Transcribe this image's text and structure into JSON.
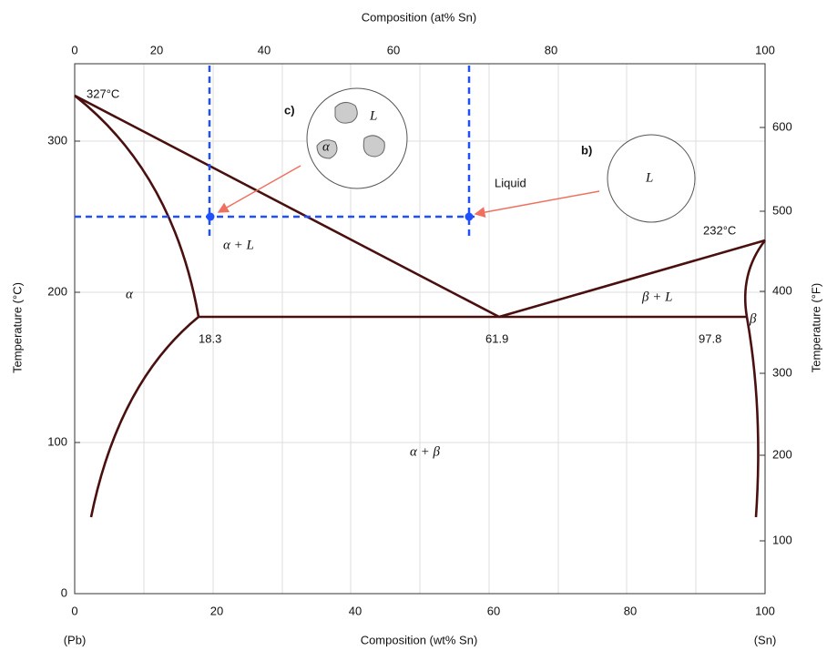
{
  "axes": {
    "top_title": "Composition (at% Sn)",
    "bottom_title": "Composition (wt% Sn)",
    "left_title": "Temperature (°C)",
    "right_title": "Temperature (°F)",
    "left_end": "(Pb)",
    "right_end": "(Sn)",
    "bottom_ticks": [
      "0",
      "20",
      "40",
      "60",
      "80",
      "100"
    ],
    "top_ticks": [
      "0",
      "20",
      "40",
      "60",
      "80",
      "100"
    ],
    "left_ticks": [
      "0",
      "100",
      "200",
      "300"
    ],
    "right_ticks": [
      "100",
      "200",
      "300",
      "400",
      "500",
      "600"
    ]
  },
  "annotations": {
    "pb_melt": "327°C",
    "sn_melt": "232°C",
    "c": "c)",
    "b": "b)",
    "liquid": "Liquid",
    "alpha_l": "α + L",
    "alpha": "α",
    "beta_l": "β + L",
    "beta": "β",
    "e1": "18.3",
    "e2": "61.9",
    "e3": "97.8",
    "alpha_beta": "α + β",
    "circle_c_l": "L",
    "circle_c_alpha": "α",
    "circle_b_l": "L"
  }
}
